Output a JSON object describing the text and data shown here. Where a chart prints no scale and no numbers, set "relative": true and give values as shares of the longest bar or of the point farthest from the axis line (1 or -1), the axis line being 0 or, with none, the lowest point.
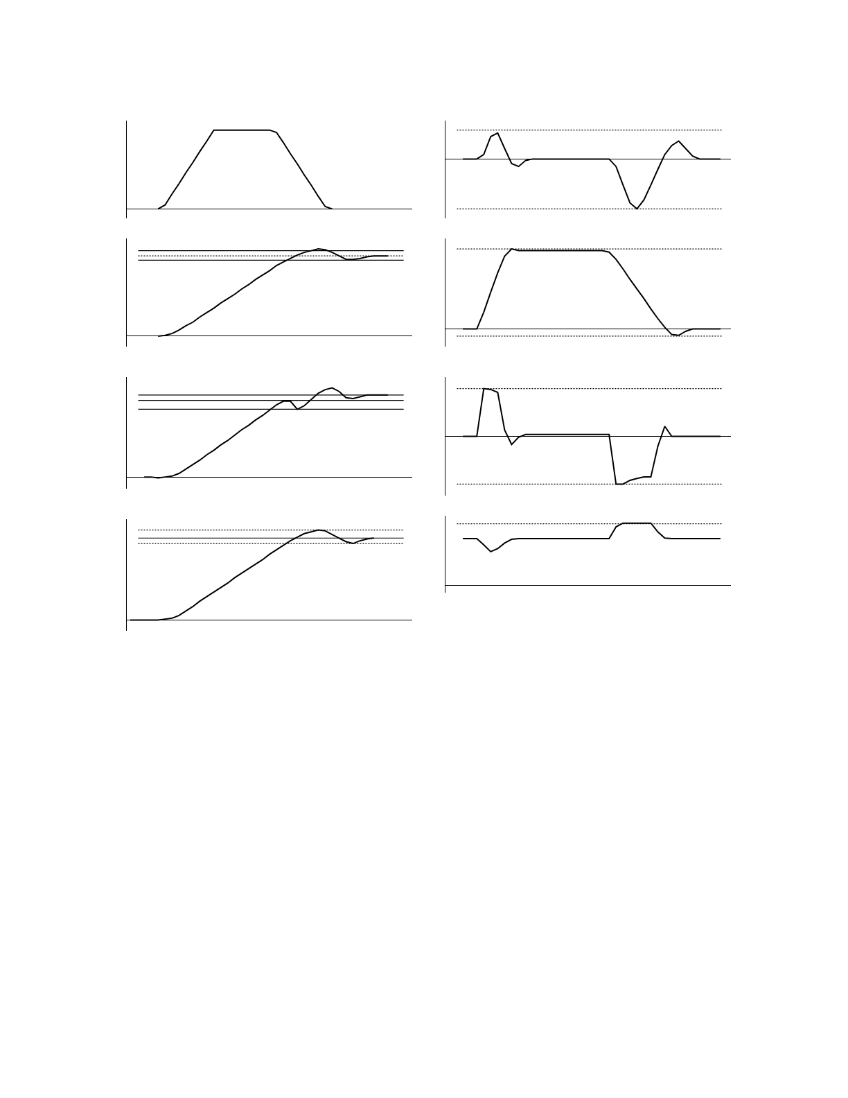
{
  "chart_data": [
    {
      "type": "line",
      "relative": true,
      "line_style": "solid",
      "categories": [
        null,
        null,
        null,
        null,
        null,
        null,
        null,
        null,
        null,
        null,
        null,
        null,
        null,
        null,
        null,
        null,
        null,
        null,
        null,
        null,
        null,
        null,
        null,
        null,
        null,
        null,
        null,
        null,
        null,
        null,
        null,
        null,
        null,
        null,
        null,
        null,
        null,
        null,
        null,
        null,
        null
      ],
      "series": [
        {
          "color": "#000000",
          "values": [
            null,
            null,
            null,
            null,
            0,
            0.05,
            0.19,
            0.32,
            0.46,
            0.59,
            0.73,
            0.86,
            1,
            1,
            1,
            1,
            1,
            1,
            1,
            1,
            1,
            0.97,
            0.84,
            0.7,
            0.57,
            0.43,
            0.3,
            0.16,
            0.03,
            0,
            null,
            null,
            null,
            null,
            null,
            null,
            null,
            null,
            null,
            null,
            null
          ]
        }
      ]
    },
    {
      "type": "line",
      "relative": true,
      "line_style": "solid",
      "categories": [
        null,
        null,
        null,
        null,
        null,
        null,
        null,
        null,
        null,
        null,
        null,
        null,
        null,
        null,
        null,
        null,
        null,
        null,
        null,
        null,
        null,
        null,
        null,
        null,
        null,
        null,
        null,
        null,
        null,
        null,
        null,
        null,
        null,
        null,
        null,
        null,
        null,
        null,
        null,
        null,
        null
      ],
      "series": [
        {
          "color": "#000000",
          "values": [
            null,
            null,
            null,
            null,
            0,
            0.01,
            0.03,
            0.07,
            0.12,
            0.16,
            0.22,
            0.27,
            0.32,
            0.38,
            0.43,
            0.48,
            0.54,
            0.59,
            0.65,
            0.7,
            0.75,
            0.81,
            0.85,
            0.89,
            0.93,
            0.96,
            0.98,
            1,
            0.99,
            0.96,
            0.92,
            0.88,
            0.88,
            0.89,
            0.91,
            0.92,
            0.92,
            0.92,
            null,
            null,
            null
          ]
        }
      ],
      "ref_lines": [
        {
          "axis": "y",
          "value": 0.98,
          "line_style": "solid",
          "color": "#000000"
        },
        {
          "axis": "y",
          "value": 0.92,
          "line_style": "dotted",
          "color": "#000000"
        },
        {
          "axis": "y",
          "value": 0.87,
          "line_style": "solid",
          "color": "#000000"
        }
      ]
    },
    {
      "type": "line",
      "relative": true,
      "line_style": "solid",
      "categories": [
        null,
        null,
        null,
        null,
        null,
        null,
        null,
        null,
        null,
        null,
        null,
        null,
        null,
        null,
        null,
        null,
        null,
        null,
        null,
        null,
        null,
        null,
        null,
        null,
        null,
        null,
        null,
        null,
        null,
        null,
        null,
        null,
        null,
        null,
        null,
        null,
        null,
        null,
        null,
        null,
        null
      ],
      "series": [
        {
          "color": "#000000",
          "values": [
            null,
            null,
            0,
            0,
            -0.01,
            0,
            0.01,
            0.04,
            0.09,
            0.14,
            0.19,
            0.25,
            0.3,
            0.36,
            0.41,
            0.47,
            0.53,
            0.58,
            0.64,
            0.69,
            0.75,
            0.81,
            0.85,
            0.85,
            0.76,
            0.8,
            0.87,
            0.94,
            0.98,
            1,
            0.96,
            0.89,
            0.88,
            0.9,
            0.92,
            0.92,
            0.92,
            0.92,
            null,
            null,
            null
          ]
        }
      ],
      "ref_lines": [
        {
          "axis": "y",
          "value": 0.92,
          "line_style": "solid",
          "color": "#000000"
        },
        {
          "axis": "y",
          "value": 0.86,
          "line_style": "solid",
          "color": "#000000"
        },
        {
          "axis": "y",
          "value": 0.76,
          "line_style": "solid",
          "color": "#000000"
        }
      ]
    },
    {
      "type": "line",
      "relative": true,
      "line_style": "solid",
      "categories": [
        null,
        null,
        null,
        null,
        null,
        null,
        null,
        null,
        null,
        null,
        null,
        null,
        null,
        null,
        null,
        null,
        null,
        null,
        null,
        null,
        null,
        null,
        null,
        null,
        null,
        null,
        null,
        null,
        null,
        null,
        null,
        null,
        null,
        null,
        null,
        null,
        null,
        null,
        null,
        null,
        null
      ],
      "series": [
        {
          "color": "#000000",
          "values": [
            0,
            0,
            0,
            0,
            0,
            0.01,
            0.02,
            0.05,
            0.1,
            0.15,
            0.21,
            0.26,
            0.31,
            0.36,
            0.41,
            0.47,
            0.52,
            0.57,
            0.62,
            0.67,
            0.73,
            0.78,
            0.83,
            0.88,
            0.92,
            0.96,
            0.98,
            1,
            0.99,
            0.95,
            0.91,
            0.87,
            0.85,
            0.88,
            0.9,
            0.91,
            null,
            null,
            null,
            null,
            null
          ]
        }
      ],
      "ref_lines": [
        {
          "axis": "y",
          "value": 1,
          "line_style": "dotted",
          "color": "#000000"
        },
        {
          "axis": "y",
          "value": 0.91,
          "line_style": "solid",
          "color": "#000000"
        },
        {
          "axis": "y",
          "value": 0.85,
          "line_style": "dotted",
          "color": "#000000"
        }
      ]
    },
    {
      "type": "line",
      "relative": true,
      "line_style": "solid",
      "categories": [
        null,
        null,
        null,
        null,
        null,
        null,
        null,
        null,
        null,
        null,
        null,
        null,
        null,
        null,
        null,
        null,
        null,
        null,
        null,
        null,
        null,
        null,
        null,
        null,
        null,
        null,
        null,
        null,
        null,
        null,
        null,
        null,
        null,
        null,
        null,
        null,
        null,
        null,
        null,
        null,
        null
      ],
      "series": [
        {
          "color": "#000000",
          "values": [
            null,
            null,
            0,
            0,
            0,
            0.09,
            0.45,
            0.52,
            0.21,
            -0.09,
            -0.15,
            -0.03,
            0,
            0,
            0,
            0,
            0,
            0,
            0,
            0,
            0,
            0,
            0,
            0,
            -0.15,
            -0.52,
            -0.88,
            -1,
            -0.82,
            -0.52,
            -0.21,
            0.09,
            0.27,
            0.36,
            0.21,
            0.06,
            0,
            0,
            0,
            0,
            null
          ]
        }
      ],
      "ref_lines": [
        {
          "axis": "y",
          "value": 0.58,
          "line_style": "dotted",
          "color": "#000000"
        },
        {
          "axis": "y",
          "value": -1,
          "line_style": "dotted",
          "color": "#000000"
        }
      ]
    },
    {
      "type": "line",
      "relative": true,
      "line_style": "solid",
      "categories": [
        null,
        null,
        null,
        null,
        null,
        null,
        null,
        null,
        null,
        null,
        null,
        null,
        null,
        null,
        null,
        null,
        null,
        null,
        null,
        null,
        null,
        null,
        null,
        null,
        null,
        null,
        null,
        null,
        null,
        null,
        null,
        null,
        null,
        null,
        null,
        null,
        null,
        null,
        null,
        null,
        null
      ],
      "series": [
        {
          "color": "#000000",
          "values": [
            null,
            null,
            0,
            0,
            0,
            0.21,
            0.46,
            0.7,
            0.91,
            1,
            0.98,
            0.98,
            0.98,
            0.98,
            0.98,
            0.98,
            0.98,
            0.98,
            0.98,
            0.98,
            0.98,
            0.98,
            0.98,
            0.96,
            0.87,
            0.75,
            0.62,
            0.5,
            0.38,
            0.25,
            0.13,
            0.02,
            -0.07,
            -0.08,
            -0.03,
            0,
            0,
            0,
            0,
            0,
            null
          ]
        }
      ],
      "ref_lines": [
        {
          "axis": "y",
          "value": 1,
          "line_style": "dotted",
          "color": "#000000"
        },
        {
          "axis": "y",
          "value": -0.09,
          "line_style": "dotted",
          "color": "#000000"
        }
      ]
    },
    {
      "type": "line",
      "relative": true,
      "line_style": "solid",
      "categories": [
        null,
        null,
        null,
        null,
        null,
        null,
        null,
        null,
        null,
        null,
        null,
        null,
        null,
        null,
        null,
        null,
        null,
        null,
        null,
        null,
        null,
        null,
        null,
        null,
        null,
        null,
        null,
        null,
        null,
        null,
        null,
        null,
        null,
        null,
        null,
        null,
        null,
        null,
        null,
        null,
        null
      ],
      "series": [
        {
          "color": "#000000",
          "values": [
            null,
            null,
            0,
            0,
            0,
            1,
            0.98,
            0.92,
            0.13,
            -0.17,
            -0.02,
            0.04,
            0.04,
            0.04,
            0.04,
            0.04,
            0.04,
            0.04,
            0.04,
            0.04,
            0.04,
            0.04,
            0.04,
            0.04,
            -1,
            -1,
            -0.92,
            -0.88,
            -0.85,
            -0.85,
            -0.21,
            0.21,
            0,
            0,
            0,
            0,
            0,
            0,
            0,
            0,
            null
          ]
        }
      ],
      "ref_lines": [
        {
          "axis": "y",
          "value": 1,
          "line_style": "dotted",
          "color": "#000000"
        },
        {
          "axis": "y",
          "value": -1,
          "line_style": "dotted",
          "color": "#000000"
        }
      ]
    },
    {
      "type": "line",
      "relative": true,
      "line_style": "solid",
      "categories": [
        null,
        null,
        null,
        null,
        null,
        null,
        null,
        null,
        null,
        null,
        null,
        null,
        null,
        null,
        null,
        null,
        null,
        null,
        null,
        null,
        null,
        null,
        null,
        null,
        null,
        null,
        null,
        null,
        null,
        null,
        null,
        null,
        null,
        null,
        null,
        null,
        null,
        null,
        null,
        null,
        null
      ],
      "series": [
        {
          "color": "#000000",
          "values": [
            null,
            null,
            0.75,
            0.75,
            0.75,
            0.65,
            0.54,
            0.59,
            0.68,
            0.74,
            0.75,
            0.75,
            0.75,
            0.75,
            0.75,
            0.75,
            0.75,
            0.75,
            0.75,
            0.75,
            0.75,
            0.75,
            0.75,
            0.75,
            0.94,
            1,
            1,
            1,
            1,
            1,
            0.86,
            0.76,
            0.75,
            0.75,
            0.75,
            0.75,
            0.75,
            0.75,
            0.75,
            0.75,
            null
          ]
        }
      ],
      "ref_lines": [
        {
          "axis": "y",
          "value": 0.99,
          "line_style": "dotted",
          "color": "#000000"
        }
      ]
    }
  ]
}
